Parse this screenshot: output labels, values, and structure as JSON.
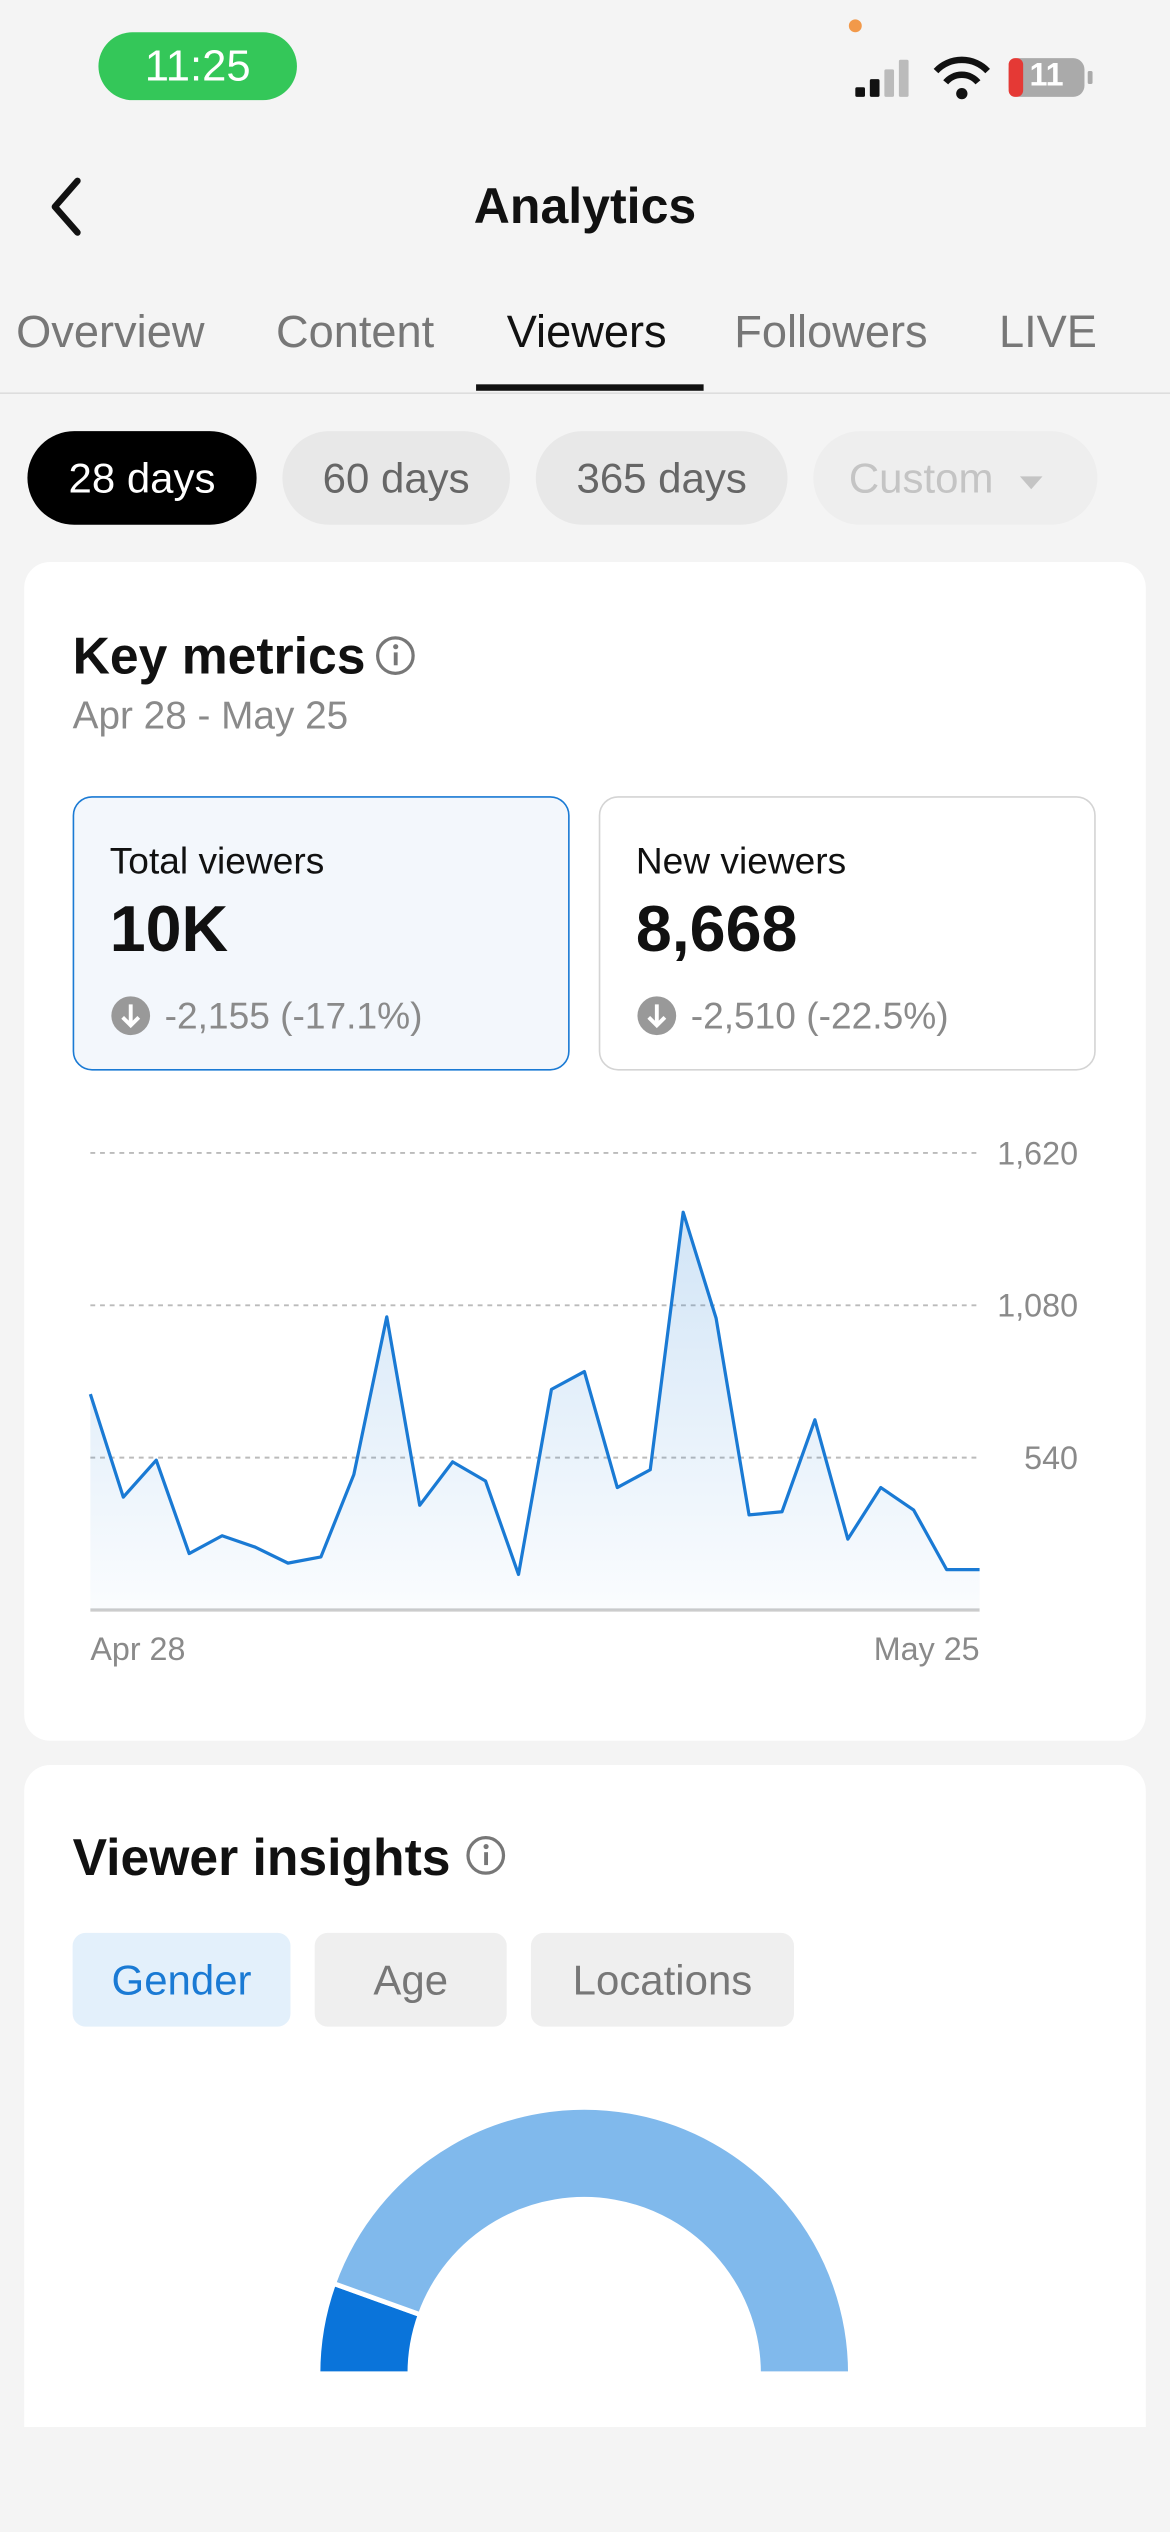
{
  "status_bar": {
    "time": "11:25",
    "battery": "11"
  },
  "header": {
    "title": "Analytics"
  },
  "tabs": [
    "Overview",
    "Content",
    "Viewers",
    "Followers",
    "LIVE"
  ],
  "periods": [
    "28 days",
    "60 days",
    "365 days",
    "Custom"
  ],
  "key_metrics": {
    "title": "Key metrics",
    "date_range": "Apr 28 - May 25",
    "cards": [
      {
        "label": "Total viewers",
        "value": "10K",
        "change": "-2,155 (-17.1%)"
      },
      {
        "label": "New viewers",
        "value": "8,668",
        "change": "-2,510 (-22.5%)"
      }
    ]
  },
  "chart_data": [
    {
      "type": "line",
      "categories": [
        "Apr 28",
        null,
        null,
        null,
        null,
        null,
        null,
        null,
        null,
        null,
        null,
        null,
        null,
        null,
        null,
        null,
        null,
        null,
        null,
        null,
        null,
        null,
        null,
        null,
        null,
        null,
        null,
        "May 25"
      ],
      "values": [
        765,
        400,
        531,
        200,
        263,
        223,
        166,
        188,
        480,
        1039,
        371,
        525,
        457,
        126,
        782,
        845,
        434,
        497,
        1410,
        1034,
        337,
        348,
        674,
        251,
        434,
        354,
        143,
        143
      ],
      "color": "#1a7ad4",
      "ylim": [
        0,
        1620
      ],
      "yticks": [
        540,
        {
          "value": 1080,
          "label": "1,080"
        },
        {
          "value": 1620,
          "label": "1,620"
        }
      ],
      "grid": true
    },
    {
      "type": "donut",
      "values": [
        11,
        89
      ],
      "colors": [
        "#0a74da",
        "#80b9ec"
      ]
    }
  ],
  "viewer_insights": {
    "title": "Viewer insights",
    "tabs": [
      "Gender",
      "Age",
      "Locations"
    ]
  }
}
